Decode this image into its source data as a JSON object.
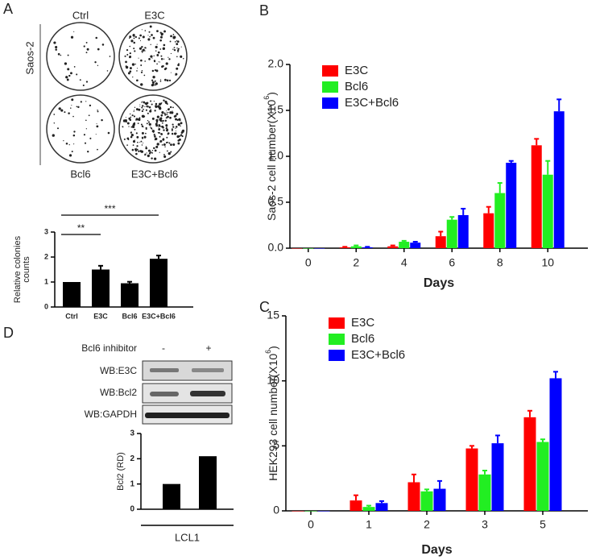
{
  "panel_labels": [
    "A",
    "B",
    "C",
    "D"
  ],
  "colony_assay": {
    "cell_line": "Saos-2",
    "plates": [
      "Ctrl",
      "E3C",
      "Bcl6",
      "E3C+Bcl6"
    ]
  },
  "blot": {
    "treatment": "Bcl6 inhibitor",
    "lanes": [
      "-",
      "+"
    ],
    "rows": [
      "WB:E3C",
      "WB:Bcl2",
      "WB:GAPDH"
    ]
  },
  "chart_data": [
    {
      "type": "bar",
      "y_label_lines": [
        "Relative colonies",
        "counts"
      ],
      "categories": [
        "Ctrl",
        "E3C",
        "Bcl6",
        "E3C+Bcl6"
      ],
      "values": [
        1,
        1.5,
        0.95,
        1.93
      ],
      "errors": [
        0,
        0.15,
        0.06,
        0.13
      ],
      "color": "#000000",
      "ylim": [
        0,
        3
      ],
      "yticks": [
        0,
        1,
        2,
        3
      ],
      "annotations": [
        "**",
        "***"
      ]
    },
    {
      "type": "grouped_bar",
      "y_label_parts": [
        "Saos-2 cell number(X10",
        "6",
        ")"
      ],
      "x_label": "Days",
      "categories": [
        "0",
        "2",
        "4",
        "6",
        "8",
        "10"
      ],
      "series": [
        {
          "name": "E3C",
          "color": "#ff0000",
          "values": [
            0,
            0.01,
            0.02,
            0.13,
            0.38,
            1.12
          ],
          "errors": [
            0,
            0.005,
            0.01,
            0.05,
            0.07,
            0.07
          ]
        },
        {
          "name": "Bcl6",
          "color": "#22ee22",
          "values": [
            0,
            0.02,
            0.07,
            0.31,
            0.6,
            0.8
          ],
          "errors": [
            0,
            0.01,
            0.01,
            0.03,
            0.11,
            0.15
          ]
        },
        {
          "name": "E3C+Bcl6",
          "color": "#0000ff",
          "values": [
            0,
            0.01,
            0.06,
            0.36,
            0.93,
            1.49
          ],
          "errors": [
            0,
            0.005,
            0.01,
            0.07,
            0.02,
            0.13
          ]
        }
      ],
      "ylim": [
        0,
        2
      ],
      "yticks": [
        {
          "value": 0,
          "label": "0.0"
        },
        {
          "value": 0.5,
          "label": "0.5"
        },
        {
          "value": 1,
          "label": "1.0"
        },
        {
          "value": 1.5,
          "label": "1.5"
        },
        {
          "value": 2,
          "label": "2.0"
        }
      ],
      "legend": "top-left"
    },
    {
      "type": "grouped_bar",
      "y_label_parts": [
        "HEK293 cell number(X10",
        "6",
        ")"
      ],
      "x_label": "Days",
      "categories": [
        "0",
        "1",
        "2",
        "3",
        "5"
      ],
      "series": [
        {
          "name": "E3C",
          "color": "#ff0000",
          "values": [
            0,
            0.8,
            2.2,
            4.8,
            7.2
          ],
          "errors": [
            0,
            0.4,
            0.6,
            0.2,
            0.5
          ]
        },
        {
          "name": "Bcl6",
          "color": "#22ee22",
          "values": [
            0,
            0.3,
            1.5,
            2.8,
            5.3
          ],
          "errors": [
            0,
            0.1,
            0.15,
            0.3,
            0.2
          ]
        },
        {
          "name": "E3C+Bcl6",
          "color": "#0000ff",
          "values": [
            0,
            0.6,
            1.7,
            5.2,
            10.2
          ],
          "errors": [
            0,
            0.15,
            0.6,
            0.6,
            0.5
          ]
        }
      ],
      "ylim": [
        0,
        15
      ],
      "yticks": [
        0,
        5,
        10,
        15
      ],
      "legend": "top-left"
    },
    {
      "type": "bar",
      "y_label": "Bcl2 (RD)",
      "x_label": "LCL1",
      "categories": [
        null,
        null
      ],
      "values": [
        1,
        2.1
      ],
      "color": "#000000",
      "ylim": [
        0,
        3
      ],
      "yticks": [
        0,
        1,
        2,
        3
      ]
    }
  ]
}
